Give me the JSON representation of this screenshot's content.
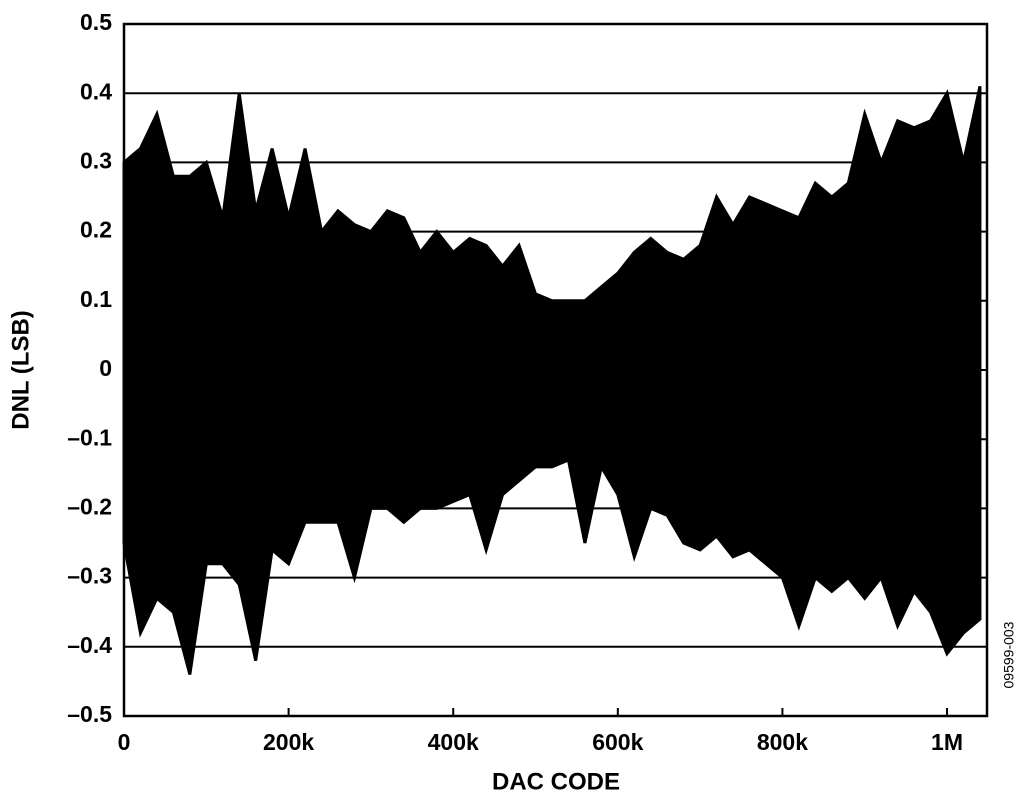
{
  "chart_data": {
    "type": "area",
    "xlabel": "DAC CODE",
    "ylabel": "DNL (LSB)",
    "figure_code": "09599-003",
    "x": [
      0,
      20000,
      40000,
      60000,
      80000,
      100000,
      120000,
      140000,
      160000,
      180000,
      200000,
      220000,
      240000,
      260000,
      280000,
      300000,
      320000,
      340000,
      360000,
      380000,
      400000,
      420000,
      440000,
      460000,
      480000,
      500000,
      520000,
      540000,
      560000,
      580000,
      600000,
      620000,
      640000,
      660000,
      680000,
      700000,
      720000,
      740000,
      760000,
      780000,
      800000,
      820000,
      840000,
      860000,
      880000,
      900000,
      920000,
      940000,
      960000,
      980000,
      1000000,
      1020000,
      1040000
    ],
    "series": [
      {
        "color": "#000000",
        "values": [
          0.3,
          0.32,
          0.37,
          0.28,
          0.28,
          0.3,
          0.22,
          0.4,
          0.23,
          0.32,
          0.22,
          0.32,
          0.2,
          0.23,
          0.21,
          0.2,
          0.23,
          0.22,
          0.17,
          0.2,
          0.17,
          0.19,
          0.18,
          0.15,
          0.18,
          0.11,
          0.1,
          0.1,
          0.1,
          0.12,
          0.14,
          0.17,
          0.19,
          0.17,
          0.16,
          0.18,
          0.25,
          0.21,
          0.25,
          0.24,
          0.23,
          0.22,
          0.27,
          0.25,
          0.27,
          0.37,
          0.3,
          0.36,
          0.35,
          0.36,
          0.4,
          0.3,
          0.41
        ]
      },
      {
        "color": "#000000",
        "values": [
          -0.25,
          -0.38,
          -0.33,
          -0.35,
          -0.44,
          -0.28,
          -0.28,
          -0.31,
          -0.42,
          -0.26,
          -0.28,
          -0.22,
          -0.22,
          -0.22,
          -0.3,
          -0.2,
          -0.2,
          -0.22,
          -0.2,
          -0.2,
          -0.19,
          -0.18,
          -0.26,
          -0.18,
          -0.16,
          -0.14,
          -0.14,
          -0.13,
          -0.25,
          -0.14,
          -0.18,
          -0.27,
          -0.2,
          -0.21,
          -0.25,
          -0.26,
          -0.24,
          -0.27,
          -0.26,
          -0.28,
          -0.3,
          -0.37,
          -0.3,
          -0.32,
          -0.3,
          -0.33,
          -0.3,
          -0.37,
          -0.32,
          -0.35,
          -0.41,
          -0.38,
          -0.36
        ]
      }
    ],
    "xlim": [
      0,
      1048576
    ],
    "xticks": [
      0,
      {
        "value": 200000,
        "label": "200k"
      },
      {
        "value": 400000,
        "label": "400k"
      },
      {
        "value": 600000,
        "label": "600k"
      },
      {
        "value": 800000,
        "label": "800k"
      },
      {
        "value": 1000000,
        "label": "1M"
      }
    ],
    "ylim": [
      -0.5,
      0.5
    ],
    "yticks": [
      {
        "value": -0.5,
        "label": "–0.5"
      },
      {
        "value": -0.4,
        "label": "–0.4"
      },
      {
        "value": -0.3,
        "label": "–0.3"
      },
      {
        "value": -0.2,
        "label": "–0.2"
      },
      {
        "value": -0.1,
        "label": "–0.1"
      },
      0,
      0.1,
      0.2,
      0.3,
      0.4,
      0.5
    ],
    "grid": true
  }
}
